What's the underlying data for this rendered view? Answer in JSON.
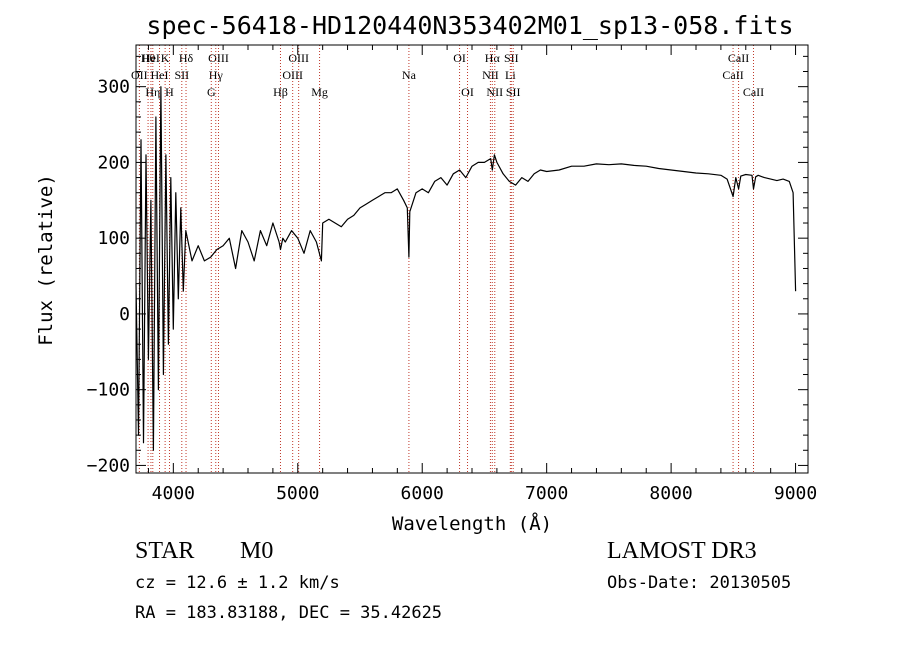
{
  "chart_data": {
    "type": "line",
    "title": "spec-56418-HD120440N353402M01_sp13-058.fits",
    "xlabel": "Wavelength (Å)",
    "ylabel": "Flux (relative)",
    "xlim": [
      3700,
      9100
    ],
    "ylim": [
      -210,
      355
    ],
    "x_ticks": [
      4000,
      5000,
      6000,
      7000,
      8000,
      9000
    ],
    "x_tick_labels": [
      "4000",
      "5000",
      "6000",
      "7000",
      "8000",
      "9000"
    ],
    "y_ticks": [
      -200,
      -100,
      0,
      100,
      200,
      300
    ],
    "y_tick_labels": [
      "−200",
      "−100",
      "0",
      "100",
      "200",
      "300"
    ],
    "series": [
      {
        "name": "spectrum",
        "x": [
          3700,
          3720,
          3740,
          3760,
          3780,
          3800,
          3820,
          3840,
          3860,
          3880,
          3900,
          3920,
          3940,
          3960,
          3980,
          4000,
          4020,
          4040,
          4060,
          4080,
          4100,
          4150,
          4200,
          4250,
          4300,
          4350,
          4400,
          4450,
          4500,
          4550,
          4600,
          4650,
          4700,
          4750,
          4800,
          4850,
          4861,
          4880,
          4900,
          4950,
          5000,
          5050,
          5100,
          5150,
          5190,
          5200,
          5250,
          5300,
          5350,
          5400,
          5450,
          5500,
          5550,
          5600,
          5650,
          5700,
          5750,
          5800,
          5850,
          5880,
          5893,
          5900,
          5920,
          5950,
          6000,
          6050,
          6100,
          6150,
          6200,
          6250,
          6300,
          6350,
          6400,
          6450,
          6500,
          6550,
          6563,
          6580,
          6600,
          6650,
          6700,
          6750,
          6800,
          6850,
          6900,
          6950,
          7000,
          7100,
          7200,
          7300,
          7400,
          7500,
          7600,
          7700,
          7800,
          7900,
          8000,
          8100,
          8200,
          8300,
          8400,
          8450,
          8498,
          8520,
          8542,
          8560,
          8600,
          8650,
          8662,
          8680,
          8700,
          8750,
          8800,
          8850,
          8900,
          8950,
          8980,
          9000
        ],
        "values": [
          40,
          -160,
          230,
          -170,
          210,
          -60,
          150,
          -180,
          260,
          -100,
          300,
          -80,
          210,
          -40,
          180,
          -20,
          160,
          20,
          140,
          30,
          110,
          70,
          90,
          70,
          75,
          85,
          90,
          100,
          60,
          110,
          95,
          70,
          110,
          90,
          120,
          95,
          85,
          100,
          95,
          110,
          100,
          80,
          110,
          95,
          70,
          120,
          125,
          120,
          115,
          125,
          130,
          140,
          145,
          150,
          155,
          160,
          160,
          165,
          150,
          140,
          75,
          135,
          145,
          160,
          165,
          160,
          175,
          180,
          170,
          185,
          190,
          180,
          195,
          200,
          200,
          205,
          190,
          210,
          200,
          185,
          175,
          170,
          180,
          175,
          185,
          190,
          188,
          190,
          195,
          195,
          198,
          197,
          198,
          196,
          195,
          192,
          190,
          188,
          186,
          185,
          183,
          178,
          155,
          180,
          165,
          182,
          184,
          183,
          165,
          181,
          183,
          180,
          178,
          176,
          178,
          175,
          160,
          30
        ]
      }
    ],
    "line_markers": [
      {
        "label": "HeI",
        "wavelength": 3820,
        "row": 1
      },
      {
        "label": "OII",
        "wavelength": 3727,
        "row": 2
      },
      {
        "label": "Hθ",
        "wavelength": 3797,
        "row": 1
      },
      {
        "label": "Hη",
        "wavelength": 3835,
        "row": 3
      },
      {
        "label": "K",
        "wavelength": 3934,
        "row": 1
      },
      {
        "label": "H",
        "wavelength": 3969,
        "row": 3
      },
      {
        "label": "HeI",
        "wavelength": 3889,
        "row": 2
      },
      {
        "label": "SII",
        "wavelength": 4068,
        "row": 2
      },
      {
        "label": "Hδ",
        "wavelength": 4102,
        "row": 1
      },
      {
        "label": "OIII",
        "wavelength": 4363,
        "row": 1
      },
      {
        "label": "Hγ",
        "wavelength": 4341,
        "row": 2
      },
      {
        "label": "G",
        "wavelength": 4305,
        "row": 3
      },
      {
        "label": "Hβ",
        "wavelength": 4861,
        "row": 3
      },
      {
        "label": "OIII",
        "wavelength": 5007,
        "row": 1
      },
      {
        "label": "OIII",
        "wavelength": 4959,
        "row": 2
      },
      {
        "label": "Mg",
        "wavelength": 5175,
        "row": 3
      },
      {
        "label": "Na",
        "wavelength": 5893,
        "row": 2
      },
      {
        "label": "OI",
        "wavelength": 6300,
        "row": 1
      },
      {
        "label": "OI",
        "wavelength": 6364,
        "row": 3
      },
      {
        "label": "Hα",
        "wavelength": 6563,
        "row": 1
      },
      {
        "label": "SII",
        "wavelength": 6716,
        "row": 1
      },
      {
        "label": "NII",
        "wavelength": 6548,
        "row": 2
      },
      {
        "label": "Li",
        "wavelength": 6708,
        "row": 2
      },
      {
        "label": "NII",
        "wavelength": 6583,
        "row": 3
      },
      {
        "label": "SII",
        "wavelength": 6731,
        "row": 3
      },
      {
        "label": "CaII",
        "wavelength": 8542,
        "row": 1
      },
      {
        "label": "CaII",
        "wavelength": 8498,
        "row": 2
      },
      {
        "label": "CaII",
        "wavelength": 8662,
        "row": 3
      }
    ],
    "colors": {
      "line": "#000000",
      "marker": "#c0392b",
      "axes": "#000000"
    }
  },
  "info": {
    "class_label": "STAR",
    "subclass": "M0",
    "survey": "LAMOST DR3",
    "redshift": "cz = 12.6 ± 1.2 km/s",
    "obs_date": "Obs-Date: 20130505",
    "coords": "RA = 183.83188, DEC =  35.42625"
  }
}
